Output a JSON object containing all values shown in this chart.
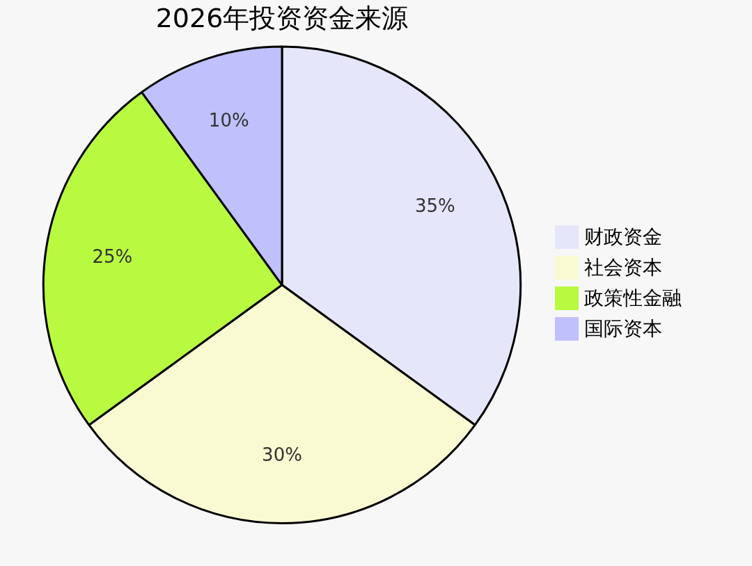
{
  "chart_data": {
    "type": "pie",
    "title": "2026年投资资金来源",
    "categories": [
      "财政资金",
      "社会资本",
      "政策性金融",
      "国际资本"
    ],
    "values": [
      35,
      30,
      25,
      10
    ],
    "colors": [
      "#e6e6fa",
      "#fafad2",
      "#b8fa40",
      "#c0c0fc"
    ],
    "value_labels": [
      "35%",
      "30%",
      "25%",
      "10%"
    ],
    "legend": "right"
  }
}
